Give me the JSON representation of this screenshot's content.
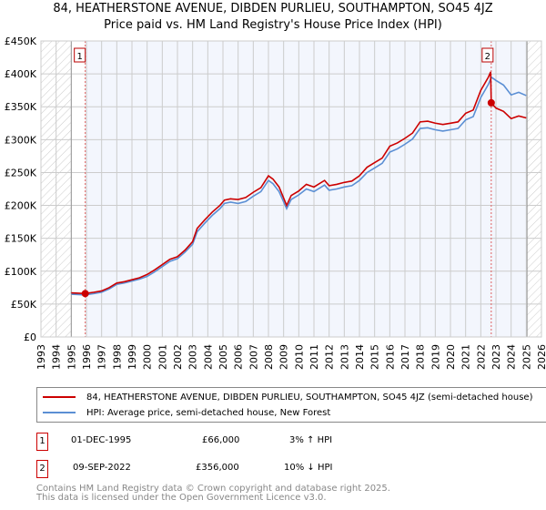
{
  "chart_data": {
    "type": "line",
    "title": "84, HEATHERSTONE AVENUE, DIBDEN PURLIEU, SOUTHAMPTON, SO45 4JZ",
    "subtitle": "Price paid vs. HM Land Registry's House Price Index (HPI)",
    "xlim": [
      1993,
      2026
    ],
    "ylim": [
      0,
      450000
    ],
    "x_ticks": [
      "1993",
      "1994",
      "1995",
      "1996",
      "1997",
      "1998",
      "1999",
      "2000",
      "2001",
      "2002",
      "2003",
      "2004",
      "2005",
      "2006",
      "2007",
      "2008",
      "2009",
      "2010",
      "2011",
      "2012",
      "2013",
      "2014",
      "2015",
      "2016",
      "2017",
      "2018",
      "2019",
      "2020",
      "2021",
      "2022",
      "2023",
      "2024",
      "2025",
      "2026"
    ],
    "y_ticks": [
      {
        "v": 0,
        "label": "£0"
      },
      {
        "v": 50000,
        "label": "£50K"
      },
      {
        "v": 100000,
        "label": "£100K"
      },
      {
        "v": 150000,
        "label": "£150K"
      },
      {
        "v": 200000,
        "label": "£200K"
      },
      {
        "v": 250000,
        "label": "£250K"
      },
      {
        "v": 300000,
        "label": "£300K"
      },
      {
        "v": 350000,
        "label": "£350K"
      },
      {
        "v": 400000,
        "label": "£400K"
      },
      {
        "v": 450000,
        "label": "£450K"
      }
    ],
    "grid": true,
    "hatched_ranges": [
      [
        1993,
        1995
      ],
      [
        2025.05,
        2026
      ]
    ],
    "series": [
      {
        "name": "84, HEATHERSTONE AVENUE, DIBDEN PURLIEU, SOUTHAMPTON, SO45 4JZ (semi-detached house)",
        "color": "#cc0000",
        "points": [
          [
            1995,
            67000
          ],
          [
            1995.9,
            66000
          ],
          [
            1996.5,
            68000
          ],
          [
            1997,
            70000
          ],
          [
            1997.5,
            75000
          ],
          [
            1998,
            82000
          ],
          [
            1998.5,
            84000
          ],
          [
            1999,
            87000
          ],
          [
            1999.5,
            90000
          ],
          [
            2000,
            95000
          ],
          [
            2000.5,
            102000
          ],
          [
            2001,
            110000
          ],
          [
            2001.5,
            118000
          ],
          [
            2002,
            122000
          ],
          [
            2002.5,
            132000
          ],
          [
            2003,
            145000
          ],
          [
            2003.3,
            165000
          ],
          [
            2003.8,
            178000
          ],
          [
            2004.3,
            190000
          ],
          [
            2004.8,
            200000
          ],
          [
            2005.1,
            208000
          ],
          [
            2005.5,
            210000
          ],
          [
            2006,
            209000
          ],
          [
            2006.5,
            212000
          ],
          [
            2007,
            220000
          ],
          [
            2007.5,
            227000
          ],
          [
            2008,
            245000
          ],
          [
            2008.3,
            240000
          ],
          [
            2008.7,
            228000
          ],
          [
            2009.2,
            200000
          ],
          [
            2009.5,
            215000
          ],
          [
            2010,
            222000
          ],
          [
            2010.5,
            232000
          ],
          [
            2011,
            228000
          ],
          [
            2011.7,
            238000
          ],
          [
            2012,
            230000
          ],
          [
            2012.5,
            232000
          ],
          [
            2013,
            235000
          ],
          [
            2013.5,
            237000
          ],
          [
            2014,
            245000
          ],
          [
            2014.5,
            258000
          ],
          [
            2015,
            265000
          ],
          [
            2015.5,
            272000
          ],
          [
            2016,
            290000
          ],
          [
            2016.5,
            295000
          ],
          [
            2017,
            302000
          ],
          [
            2017.5,
            310000
          ],
          [
            2018,
            327000
          ],
          [
            2018.5,
            328000
          ],
          [
            2019,
            325000
          ],
          [
            2019.5,
            323000
          ],
          [
            2020,
            325000
          ],
          [
            2020.5,
            327000
          ],
          [
            2021,
            340000
          ],
          [
            2021.5,
            345000
          ],
          [
            2022,
            375000
          ],
          [
            2022.5,
            395000
          ],
          [
            2022.65,
            403000
          ],
          [
            2022.69,
            356000
          ],
          [
            2023,
            348000
          ],
          [
            2023.5,
            343000
          ],
          [
            2024,
            332000
          ],
          [
            2024.5,
            336000
          ],
          [
            2025,
            333000
          ]
        ]
      },
      {
        "name": "HPI: Average price, semi-detached house, New Forest",
        "color": "#5b8fd4",
        "points": [
          [
            1995,
            65000
          ],
          [
            1995.9,
            64000
          ],
          [
            1996.5,
            66000
          ],
          [
            1997,
            68000
          ],
          [
            1997.5,
            73000
          ],
          [
            1998,
            80000
          ],
          [
            1998.5,
            82000
          ],
          [
            1999,
            85000
          ],
          [
            1999.5,
            88000
          ],
          [
            2000,
            92000
          ],
          [
            2000.5,
            99000
          ],
          [
            2001,
            107000
          ],
          [
            2001.5,
            115000
          ],
          [
            2002,
            119000
          ],
          [
            2002.5,
            129000
          ],
          [
            2003,
            141000
          ],
          [
            2003.3,
            160000
          ],
          [
            2003.8,
            173000
          ],
          [
            2004.3,
            185000
          ],
          [
            2004.8,
            195000
          ],
          [
            2005.1,
            203000
          ],
          [
            2005.5,
            205000
          ],
          [
            2006,
            203000
          ],
          [
            2006.5,
            206000
          ],
          [
            2007,
            214000
          ],
          [
            2007.5,
            221000
          ],
          [
            2008,
            238000
          ],
          [
            2008.3,
            233000
          ],
          [
            2008.7,
            221000
          ],
          [
            2009.2,
            195000
          ],
          [
            2009.5,
            209000
          ],
          [
            2010,
            216000
          ],
          [
            2010.5,
            225000
          ],
          [
            2011,
            221000
          ],
          [
            2011.7,
            231000
          ],
          [
            2012,
            223000
          ],
          [
            2012.5,
            225000
          ],
          [
            2013,
            228000
          ],
          [
            2013.5,
            230000
          ],
          [
            2014,
            238000
          ],
          [
            2014.5,
            250000
          ],
          [
            2015,
            257000
          ],
          [
            2015.5,
            264000
          ],
          [
            2016,
            281000
          ],
          [
            2016.5,
            286000
          ],
          [
            2017,
            293000
          ],
          [
            2017.5,
            301000
          ],
          [
            2018,
            317000
          ],
          [
            2018.5,
            318000
          ],
          [
            2019,
            315000
          ],
          [
            2019.5,
            313000
          ],
          [
            2020,
            315000
          ],
          [
            2020.5,
            317000
          ],
          [
            2021,
            330000
          ],
          [
            2021.5,
            335000
          ],
          [
            2022,
            364000
          ],
          [
            2022.5,
            384000
          ],
          [
            2022.7,
            395000
          ],
          [
            2023,
            390000
          ],
          [
            2023.5,
            383000
          ],
          [
            2024,
            368000
          ],
          [
            2024.5,
            372000
          ],
          [
            2025,
            367000
          ]
        ]
      }
    ],
    "sales": [
      {
        "label": "1",
        "x": 1995.92,
        "y": 66000
      },
      {
        "label": "2",
        "x": 2022.69,
        "y": 356000
      }
    ]
  },
  "legend": {
    "red_label": "84, HEATHERSTONE AVENUE, DIBDEN PURLIEU, SOUTHAMPTON, SO45 4JZ (semi-detached house)",
    "blue_label": "HPI: Average price, semi-detached house, New Forest"
  },
  "sales_table": [
    {
      "num": "1",
      "date": "01-DEC-1995",
      "price": "£66,000",
      "hpi": "3% ↑ HPI"
    },
    {
      "num": "2",
      "date": "09-SEP-2022",
      "price": "£356,000",
      "hpi": "10% ↓ HPI"
    }
  ],
  "footer": {
    "line1": "Contains HM Land Registry data © Crown copyright and database right 2025.",
    "line2": "This data is licensed under the Open Government Licence v3.0."
  }
}
